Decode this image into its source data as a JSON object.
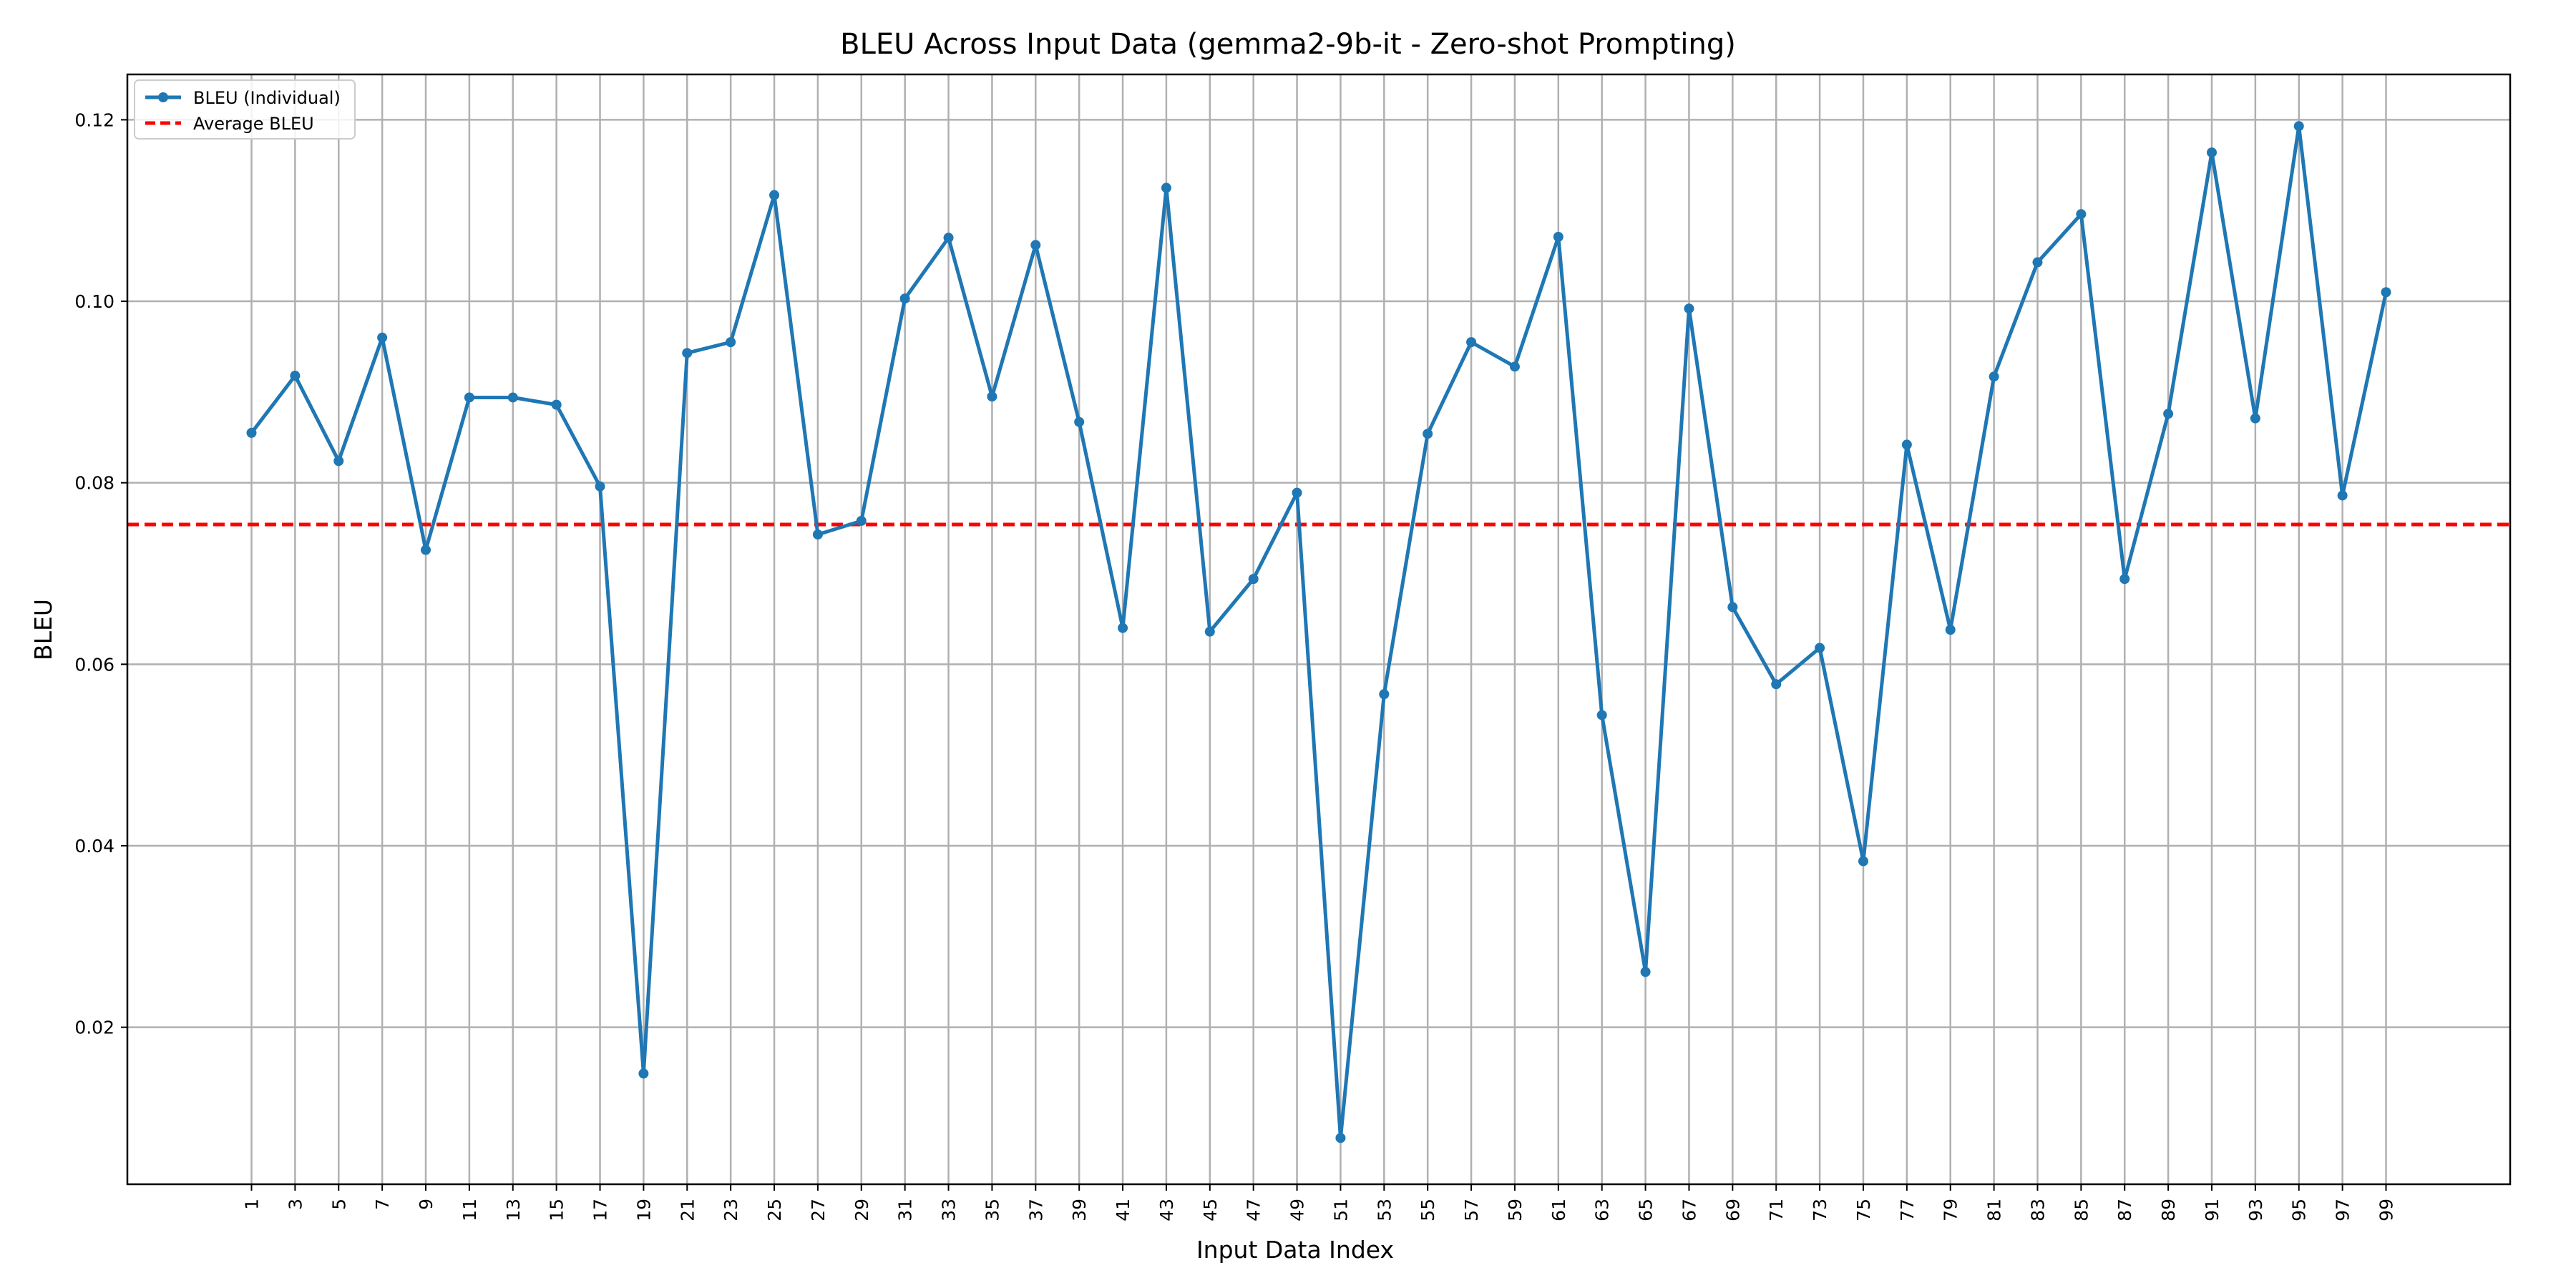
{
  "chart_data": {
    "type": "line",
    "title": "BLEU Across Input Data (gemma2-9b-it - Zero-shot Prompting)",
    "xlabel": "Input Data Index",
    "ylabel": "BLEU",
    "xlim": [
      -4.7,
      104.7
    ],
    "ylim": [
      0.0027,
      0.125
    ],
    "grid": true,
    "legend_position": "top-left",
    "x": [
      1,
      3,
      5,
      7,
      9,
      11,
      13,
      15,
      17,
      19,
      21,
      23,
      25,
      27,
      29,
      31,
      33,
      35,
      37,
      39,
      41,
      43,
      45,
      47,
      49,
      51,
      53,
      55,
      57,
      59,
      61,
      63,
      65,
      67,
      69,
      71,
      73,
      75,
      77,
      79,
      81,
      83,
      85,
      87,
      89,
      91,
      93,
      95,
      97,
      99
    ],
    "x_ticks": [
      "1",
      "3",
      "5",
      "7",
      "9",
      "11",
      "13",
      "15",
      "17",
      "19",
      "21",
      "23",
      "25",
      "27",
      "29",
      "31",
      "33",
      "35",
      "37",
      "39",
      "41",
      "43",
      "45",
      "47",
      "49",
      "51",
      "53",
      "55",
      "57",
      "59",
      "61",
      "63",
      "65",
      "67",
      "69",
      "71",
      "73",
      "75",
      "77",
      "79",
      "81",
      "83",
      "85",
      "87",
      "89",
      "91",
      "93",
      "95",
      "97",
      "99"
    ],
    "y_ticks": [
      0.02,
      0.04,
      0.06,
      0.08,
      0.1,
      0.12
    ],
    "y_tick_labels": [
      "0.02",
      "0.04",
      "0.06",
      "0.08",
      "0.10",
      "0.12"
    ],
    "series": [
      {
        "name": "BLEU (Individual)",
        "color": "#1f77b4",
        "style": "solid-marker",
        "values": [
          0.0855,
          0.0918,
          0.0824,
          0.096,
          0.0726,
          0.0894,
          0.0894,
          0.0886,
          0.0796,
          0.0149,
          0.0943,
          0.0955,
          0.1117,
          0.0743,
          0.0758,
          0.1003,
          0.107,
          0.0895,
          0.1062,
          0.0867,
          0.064,
          0.1125,
          0.0636,
          0.0694,
          0.0789,
          0.0078,
          0.0567,
          0.0854,
          0.0955,
          0.0928,
          0.1071,
          0.0544,
          0.0261,
          0.0992,
          0.0663,
          0.0578,
          0.0618,
          0.0383,
          0.0842,
          0.0638,
          0.0917,
          0.1043,
          0.1096,
          0.0694,
          0.0876,
          0.1164,
          0.0871,
          0.1193,
          0.0786,
          0.101
        ]
      },
      {
        "name": "Average BLEU",
        "color": "#ff0000",
        "style": "dashed",
        "value": 0.0754
      }
    ]
  }
}
